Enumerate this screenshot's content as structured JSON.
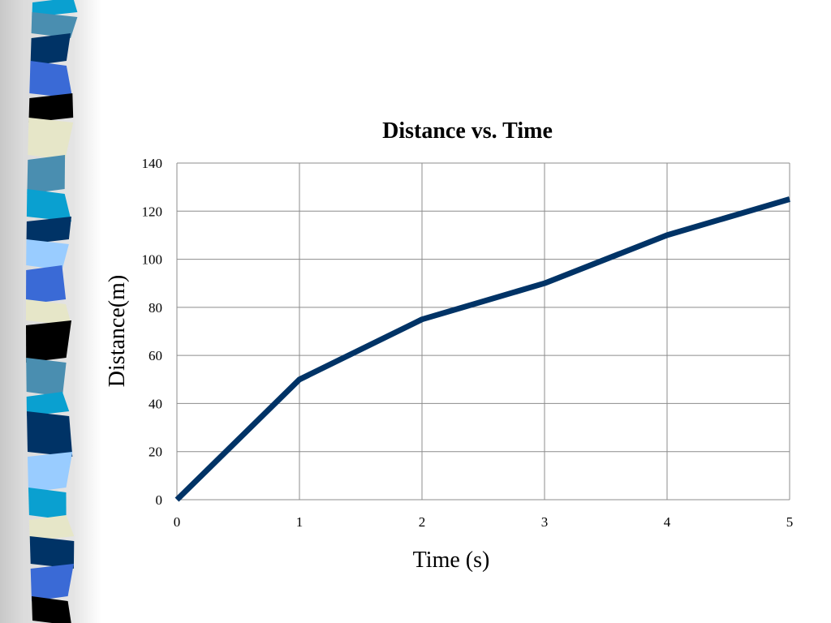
{
  "chart_data": {
    "type": "line",
    "title": "Distance vs. Time",
    "xlabel": "Time (s)",
    "ylabel": "Distance(m)",
    "x": [
      0,
      1,
      2,
      3,
      4,
      5
    ],
    "series": [
      {
        "values": [
          0,
          50,
          75,
          90,
          110,
          125
        ],
        "color": "#003366"
      }
    ],
    "xlim": [
      0,
      5
    ],
    "ylim": [
      0,
      140
    ],
    "xticks": [
      "0",
      "1",
      "2",
      "3",
      "4",
      "5"
    ],
    "yticks": [
      "0",
      "20",
      "40",
      "60",
      "80",
      "100",
      "120",
      "140"
    ],
    "grid": true,
    "legend": "none",
    "gridline_color": "#8c8c8c"
  },
  "decoration": {
    "ribbon_colors": [
      "#0aa0d0",
      "#4a8eb0",
      "#003366",
      "#3a6ad6",
      "#000000",
      "#e6e6c8",
      "#99ccff"
    ]
  }
}
